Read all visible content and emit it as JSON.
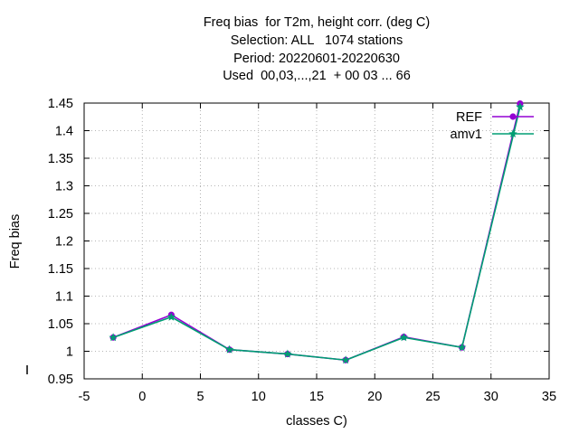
{
  "chart_data": {
    "type": "line",
    "title_lines": [
      "Freq bias  for T2m, height corr. (deg C)",
      "Selection: ALL   1074 stations",
      "Period: 20220601-20220630",
      "Used  00,03,...,21  + 00 03 ... 66"
    ],
    "xlabel": "classes C)",
    "ylabel": "Freq bias",
    "xlim": [
      -5,
      35
    ],
    "ylim": [
      0.95,
      1.45
    ],
    "xticks": [
      -5,
      0,
      5,
      10,
      15,
      20,
      25,
      30,
      35
    ],
    "yticks": [
      0.95,
      1,
      1.05,
      1.1,
      1.15,
      1.2,
      1.25,
      1.3,
      1.35,
      1.4,
      1.45
    ],
    "grid": true,
    "legend_position": "top-right",
    "series": [
      {
        "name": "REF",
        "color": "#9400d3",
        "marker": "circle",
        "x": [
          -2.5,
          2.5,
          7.5,
          12.5,
          17.5,
          22.5,
          27.5,
          32.5
        ],
        "y": [
          1.025,
          1.066,
          1.003,
          0.995,
          0.984,
          1.026,
          1.007,
          1.449
        ]
      },
      {
        "name": "amv1",
        "color": "#009e73",
        "marker": "star",
        "x": [
          -2.5,
          2.5,
          7.5,
          12.5,
          17.5,
          22.5,
          27.5,
          32.5
        ],
        "y": [
          1.025,
          1.062,
          1.003,
          0.995,
          0.984,
          1.025,
          1.007,
          1.443
        ]
      }
    ]
  }
}
